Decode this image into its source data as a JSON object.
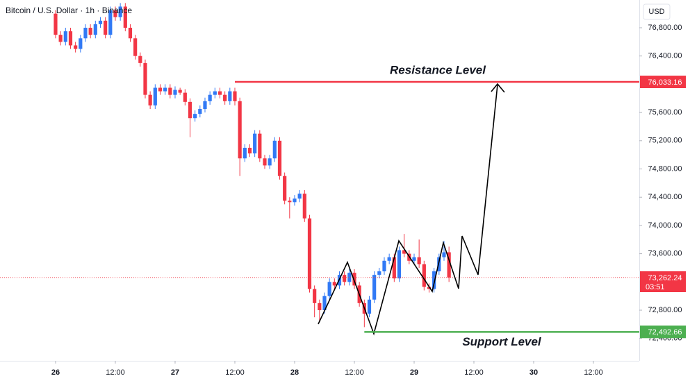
{
  "chart_data": {
    "type": "candlestick",
    "title": "Bitcoin / U.S. Dollar · 1h · Binance",
    "currency": "USD",
    "x": [
      0,
      1,
      2,
      3,
      4,
      5,
      6,
      7,
      8,
      9,
      10,
      11,
      12,
      13,
      14,
      15,
      16,
      17,
      18,
      19,
      20,
      21,
      22,
      23,
      24,
      25,
      26,
      27,
      28,
      29,
      30,
      31,
      32,
      33,
      34,
      35,
      36,
      37,
      38,
      39,
      40,
      41,
      42,
      43,
      44,
      45,
      46,
      47,
      48,
      49,
      50,
      51,
      52,
      53,
      54,
      55,
      56,
      57,
      58,
      59,
      60,
      61,
      62,
      63,
      64,
      65,
      66,
      67,
      68,
      69,
      70,
      71,
      72,
      73,
      74,
      75,
      76,
      77,
      78,
      79
    ],
    "open": [
      77000,
      76700,
      76600,
      76750,
      76550,
      76500,
      76650,
      76800,
      76700,
      76850,
      76900,
      76700,
      77050,
      76950,
      77100,
      76800,
      76650,
      76400,
      76300,
      75850,
      75700,
      75950,
      75900,
      75950,
      75850,
      75920,
      75880,
      75750,
      75520,
      75580,
      75650,
      75760,
      75850,
      75900,
      75850,
      75760,
      75900,
      75760,
      74950,
      75100,
      75020,
      75300,
      74950,
      74850,
      74950,
      75200,
      74700,
      74350,
      74330,
      74380,
      74450,
      74100,
      73100,
      72900,
      72800,
      73000,
      73200,
      73150,
      73300,
      73200,
      73330,
      73150,
      72900,
      72750,
      72950,
      73300,
      73350,
      73500,
      73550,
      73250,
      73650,
      73600,
      73500,
      73550,
      73450,
      73130,
      73100,
      73350,
      73550,
      73620
    ],
    "high": [
      77050,
      76750,
      76800,
      76800,
      76600,
      76700,
      76850,
      76850,
      76900,
      76950,
      76950,
      77100,
      77100,
      77150,
      77150,
      76850,
      76700,
      76450,
      76350,
      75900,
      76000,
      76000,
      76000,
      76000,
      75970,
      75950,
      75930,
      75800,
      75630,
      75700,
      75810,
      75900,
      75950,
      75950,
      75900,
      75950,
      75950,
      75810,
      75150,
      75150,
      75350,
      75350,
      75000,
      75000,
      75250,
      75250,
      74750,
      74400,
      74430,
      74500,
      74500,
      74150,
      73150,
      72950,
      73050,
      73250,
      73250,
      73350,
      73350,
      73380,
      73380,
      73200,
      72950,
      73000,
      73350,
      73400,
      73550,
      73600,
      73600,
      73700,
      73880,
      73650,
      73600,
      73800,
      73500,
      73180,
      73400,
      73600,
      73780,
      73700
    ],
    "low": [
      76650,
      76550,
      76550,
      76500,
      76450,
      76450,
      76600,
      76650,
      76650,
      76800,
      76650,
      76650,
      76900,
      76900,
      76750,
      76600,
      76350,
      76250,
      75800,
      75650,
      75650,
      75850,
      75850,
      75800,
      75800,
      75850,
      75700,
      75250,
      75470,
      75530,
      75600,
      75710,
      75800,
      75800,
      75710,
      75710,
      75700,
      74700,
      74900,
      74970,
      74970,
      74900,
      74800,
      74800,
      74900,
      74650,
      74300,
      74100,
      74280,
      74330,
      74050,
      73050,
      72700,
      72650,
      72750,
      72950,
      73100,
      73100,
      73150,
      73150,
      73100,
      72850,
      72560,
      72700,
      72900,
      73250,
      73300,
      73450,
      73200,
      73200,
      73550,
      73450,
      73450,
      73400,
      73080,
      73050,
      73050,
      73300,
      73500,
      73200
    ],
    "close": [
      76700,
      76600,
      76750,
      76550,
      76500,
      76650,
      76800,
      76700,
      76850,
      76900,
      76700,
      77050,
      76950,
      77100,
      76800,
      76650,
      76400,
      76300,
      75850,
      75700,
      75950,
      75900,
      75950,
      75850,
      75920,
      75880,
      75750,
      75520,
      75580,
      75650,
      75760,
      75850,
      75900,
      75850,
      75760,
      75900,
      75760,
      74950,
      75100,
      75020,
      75300,
      74950,
      74850,
      74950,
      75200,
      74700,
      74350,
      74330,
      74380,
      74450,
      74100,
      73100,
      72900,
      72800,
      73000,
      73200,
      73150,
      73300,
      73200,
      73330,
      73150,
      72900,
      72750,
      72950,
      73300,
      73350,
      73500,
      73550,
      73250,
      73650,
      73600,
      73500,
      73550,
      73450,
      73130,
      73100,
      73350,
      73550,
      73620,
      73262.24
    ],
    "up_color": "#3179f5",
    "down_color": "#f23645",
    "xlim": [
      -11.16,
      117.21
    ],
    "xticks": [
      {
        "value": 0,
        "label": "26"
      },
      {
        "value": 12,
        "label": "12:00"
      },
      {
        "value": 24,
        "label": "27"
      },
      {
        "value": 36,
        "label": "12:00"
      },
      {
        "value": 48,
        "label": "28"
      },
      {
        "value": 60,
        "label": "12:00"
      },
      {
        "value": 72,
        "label": "29"
      },
      {
        "value": 84,
        "label": "12:00"
      },
      {
        "value": 96,
        "label": "30"
      },
      {
        "value": 108,
        "label": "12:00"
      }
    ],
    "ylim": [
      72083,
      77193
    ],
    "yticks": [
      {
        "value": 72400,
        "label": "72,400.00"
      },
      {
        "value": 72800,
        "label": "72,800.00"
      },
      {
        "value": 73600,
        "label": "73,600.00"
      },
      {
        "value": 74000,
        "label": "74,000.00"
      },
      {
        "value": 74400,
        "label": "74,400.00"
      },
      {
        "value": 74800,
        "label": "74,800.00"
      },
      {
        "value": 75200,
        "label": "75,200.00"
      },
      {
        "value": 75600,
        "label": "75,600.00"
      },
      {
        "value": 76400,
        "label": "76,400.00"
      },
      {
        "value": 76800,
        "label": "76,800.00"
      }
    ],
    "levels": [
      {
        "name": "Resistance Level",
        "value": 76033.16,
        "label": "76,033.16",
        "start": 36,
        "color": "#f23645"
      },
      {
        "name": "Support Level",
        "value": 72492.66,
        "label": "72,492.66",
        "start": 62,
        "color": "#4caf50"
      }
    ],
    "last_price": {
      "value": 73262.24,
      "label": "73,262.24",
      "countdown": "03:51",
      "color": "#f23645"
    }
  }
}
